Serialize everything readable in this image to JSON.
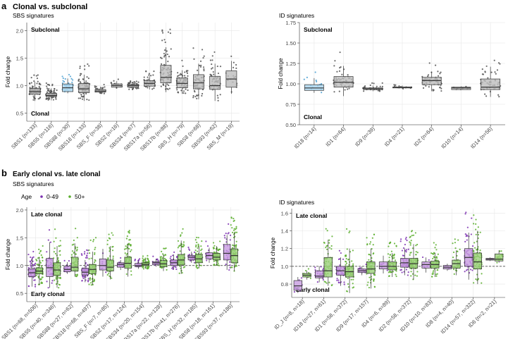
{
  "panel_a": {
    "letter": "a",
    "title": "Clonal vs. subclonal",
    "left_subtitle": "SBS signatures",
    "right_subtitle": "ID signatures"
  },
  "panel_b": {
    "letter": "b",
    "title": "Early clonal vs. late clonal",
    "left_subtitle": "SBS signatures",
    "right_subtitle": "ID signatures",
    "legend_title": "Age",
    "legend_items": [
      {
        "label": "0-49",
        "color": "#7b2fb0"
      },
      {
        "label": "50+",
        "color": "#5aae2d"
      }
    ]
  },
  "colors": {
    "box_grey": "#bdbdbd",
    "box_blue": "#a7d3ec",
    "point_grey": "#555555",
    "point_blue": "#4a9fd1",
    "purple_box": "#c79be0",
    "purple_point": "#7b2fb0",
    "green_box": "#9bcf7a",
    "green_point": "#5aae2d",
    "grid": "#e6e6e6"
  },
  "chart_data": [
    {
      "id": "a_sbs",
      "type": "box",
      "panel": "a",
      "title": "SBS signatures",
      "xlabel": "",
      "ylabel": "Fold change",
      "ylim": [
        0.35,
        2.15
      ],
      "yticks": [
        0.5,
        1.0,
        1.5,
        2.0
      ],
      "yticklabels": [
        "0.5",
        "1.0",
        "1.5",
        "2.0"
      ],
      "annotations": {
        "top": "Subclonal",
        "bottom": "Clonal"
      },
      "categories": [
        "SBS1 (n=133)",
        "SBS5 (n=116)",
        "SBS88 (n=30)",
        "SBS18 (n=133)",
        "SBS_F (n=38)",
        "SBS2 (n=16)",
        "SBS34 (n=67)",
        "SBS17a (n=56)",
        "SBS17b (n=88)",
        "SBS_H (n=79)",
        "SBS8 (n=68)",
        "SBS93 (n=62)",
        "SBS_M (n=19)"
      ],
      "box_color": [
        "grey",
        "grey",
        "blue",
        "grey",
        "grey",
        "grey",
        "grey",
        "grey",
        "grey",
        "grey",
        "grey",
        "grey",
        "grey"
      ],
      "stats": [
        {
          "q1": 0.84,
          "median": 0.89,
          "q3": 0.95,
          "lo": 0.72,
          "hi": 1.07
        },
        {
          "q1": 0.8,
          "median": 0.82,
          "q3": 0.86,
          "lo": 0.73,
          "hi": 0.95
        },
        {
          "q1": 0.89,
          "median": 0.96,
          "q3": 1.03,
          "lo": 0.86,
          "hi": 1.13
        },
        {
          "q1": 0.87,
          "median": 0.94,
          "q3": 1.04,
          "lo": 0.72,
          "hi": 1.2
        },
        {
          "q1": 0.88,
          "median": 0.9,
          "q3": 0.93,
          "lo": 0.85,
          "hi": 0.98
        },
        {
          "q1": 0.97,
          "median": 1.0,
          "q3": 1.03,
          "lo": 0.95,
          "hi": 1.08
        },
        {
          "q1": 0.97,
          "median": 1.0,
          "q3": 1.02,
          "lo": 0.93,
          "hi": 1.07
        },
        {
          "q1": 0.99,
          "median": 1.04,
          "q3": 1.09,
          "lo": 0.93,
          "hi": 1.17
        },
        {
          "q1": 1.05,
          "median": 1.15,
          "q3": 1.37,
          "lo": 0.88,
          "hi": 1.7
        },
        {
          "q1": 0.96,
          "median": 1.04,
          "q3": 1.14,
          "lo": 0.85,
          "hi": 1.28
        },
        {
          "q1": 0.94,
          "median": 1.05,
          "q3": 1.2,
          "lo": 0.75,
          "hi": 1.4
        },
        {
          "q1": 0.93,
          "median": 1.0,
          "q3": 1.17,
          "lo": 0.72,
          "hi": 1.4
        },
        {
          "q1": 0.97,
          "median": 1.12,
          "q3": 1.27,
          "lo": 0.85,
          "hi": 1.45
        }
      ],
      "n": [
        133,
        116,
        30,
        133,
        38,
        16,
        67,
        56,
        88,
        79,
        68,
        62,
        19
      ]
    },
    {
      "id": "a_id",
      "type": "box",
      "panel": "a",
      "title": "ID signatures",
      "xlabel": "",
      "ylabel": "Fold change",
      "ylim": [
        0.5,
        1.75
      ],
      "yticks": [
        0.5,
        0.75,
        1.0,
        1.25,
        1.5,
        1.75
      ],
      "yticklabels": [
        "0.50",
        "0.75",
        "1.00",
        "1.25",
        "1.50",
        "1.75"
      ],
      "annotations": {
        "top": "Subclonal",
        "bottom": "Clonal"
      },
      "categories": [
        "ID18 (n=14)",
        "ID1 (n=64)",
        "ID9 (n=39)",
        "ID4 (n=21)",
        "ID2 (n=64)",
        "ID10 (n=14)",
        "ID14 (n=56)"
      ],
      "box_color": [
        "blue",
        "grey",
        "grey",
        "grey",
        "grey",
        "grey",
        "grey"
      ],
      "stats": [
        {
          "q1": 0.92,
          "median": 0.95,
          "q3": 0.99,
          "lo": 0.89,
          "hi": 1.07
        },
        {
          "q1": 0.96,
          "median": 1.02,
          "q3": 1.09,
          "lo": 0.85,
          "hi": 1.22
        },
        {
          "q1": 0.93,
          "median": 0.94,
          "q3": 0.95,
          "lo": 0.91,
          "hi": 0.98
        },
        {
          "q1": 0.95,
          "median": 0.96,
          "q3": 0.96,
          "lo": 0.94,
          "hi": 0.98
        },
        {
          "q1": 0.99,
          "median": 1.04,
          "q3": 1.08,
          "lo": 0.91,
          "hi": 1.15
        },
        {
          "q1": 0.93,
          "median": 0.95,
          "q3": 0.96,
          "lo": 0.93,
          "hi": 0.97
        },
        {
          "q1": 0.93,
          "median": 0.96,
          "q3": 1.06,
          "lo": 0.84,
          "hi": 1.21
        }
      ],
      "n": [
        14,
        64,
        39,
        21,
        64,
        14,
        56
      ]
    },
    {
      "id": "b_sbs",
      "type": "box",
      "panel": "b",
      "title": "SBS signatures",
      "xlabel": "",
      "ylabel": "Fold change",
      "ylim": [
        0.35,
        2.05
      ],
      "yticks": [
        0.5,
        1.0,
        1.5,
        2.0
      ],
      "yticklabels": [
        "0.5",
        "1.0",
        "1.5",
        "2.0"
      ],
      "reference_line": 1.0,
      "annotations": {
        "top": "Late clonal",
        "bottom": "Early clonal"
      },
      "categories": [
        "SBS1 (n=68, n=506)",
        "SBS5 (n=40, n=346)",
        "SBS88 (n=27, n=62)",
        "SBS18 (n=68, n=497)",
        "SBS_F (n=7, n=85)",
        "SBS2 (n=17, n=124)",
        "SBS34 (n=20, n=154)",
        "SBS17a (n=22, n=128)",
        "SBS17b (n=41, n=276)",
        "SBS_H (n=32, n=185)",
        "SBS8 (n=18, n=161)",
        "SBS93 (n=37, n=186)"
      ],
      "series": [
        {
          "name": "0-49",
          "stats": [
            {
              "q1": 0.8,
              "median": 0.87,
              "q3": 0.94,
              "lo": 0.62,
              "hi": 1.12
            },
            {
              "q1": 0.8,
              "median": 0.96,
              "q3": 1.13,
              "lo": 0.6,
              "hi": 1.42
            },
            {
              "q1": 0.89,
              "median": 0.93,
              "q3": 0.99,
              "lo": 0.85,
              "hi": 1.06
            },
            {
              "q1": 0.83,
              "median": 0.88,
              "q3": 0.95,
              "lo": 0.7,
              "hi": 1.1
            },
            {
              "q1": 0.92,
              "median": 1.0,
              "q3": 1.12,
              "lo": 0.8,
              "hi": 1.3
            },
            {
              "q1": 0.97,
              "median": 1.02,
              "q3": 1.05,
              "lo": 0.92,
              "hi": 1.1
            },
            {
              "q1": 0.98,
              "median": 1.0,
              "q3": 1.04,
              "lo": 0.94,
              "hi": 1.08
            },
            {
              "q1": 1.02,
              "median": 1.05,
              "q3": 1.07,
              "lo": 0.98,
              "hi": 1.12
            },
            {
              "q1": 1.0,
              "median": 1.05,
              "q3": 1.1,
              "lo": 0.93,
              "hi": 1.2
            },
            {
              "q1": 1.1,
              "median": 1.15,
              "q3": 1.18,
              "lo": 1.05,
              "hi": 1.25
            },
            {
              "q1": 1.12,
              "median": 1.18,
              "q3": 1.23,
              "lo": 1.05,
              "hi": 1.32
            },
            {
              "q1": 1.1,
              "median": 1.22,
              "q3": 1.38,
              "lo": 0.92,
              "hi": 1.55
            }
          ],
          "n": [
            68,
            40,
            27,
            68,
            7,
            17,
            20,
            22,
            41,
            32,
            18,
            37
          ]
        },
        {
          "name": "50+",
          "stats": [
            {
              "q1": 0.85,
              "median": 0.9,
              "q3": 0.96,
              "lo": 0.65,
              "hi": 1.15
            },
            {
              "q1": 0.82,
              "median": 0.92,
              "q3": 1.05,
              "lo": 0.6,
              "hi": 1.35
            },
            {
              "q1": 0.9,
              "median": 0.97,
              "q3": 1.15,
              "lo": 0.8,
              "hi": 1.4
            },
            {
              "q1": 0.85,
              "median": 0.93,
              "q3": 1.02,
              "lo": 0.65,
              "hi": 1.25
            },
            {
              "q1": 0.9,
              "median": 0.97,
              "q3": 1.1,
              "lo": 0.75,
              "hi": 1.35
            },
            {
              "q1": 0.95,
              "median": 1.04,
              "q3": 1.15,
              "lo": 0.8,
              "hi": 1.4
            },
            {
              "q1": 1.0,
              "median": 1.02,
              "q3": 1.05,
              "lo": 0.94,
              "hi": 1.12
            },
            {
              "q1": 0.98,
              "median": 1.03,
              "q3": 1.09,
              "lo": 0.9,
              "hi": 1.2
            },
            {
              "q1": 1.01,
              "median": 1.1,
              "q3": 1.2,
              "lo": 0.85,
              "hi": 1.45
            },
            {
              "q1": 1.05,
              "median": 1.12,
              "q3": 1.2,
              "lo": 0.95,
              "hi": 1.35
            },
            {
              "q1": 1.1,
              "median": 1.15,
              "q3": 1.22,
              "lo": 1.0,
              "hi": 1.35
            },
            {
              "q1": 1.05,
              "median": 1.18,
              "q3": 1.3,
              "lo": 0.9,
              "hi": 1.6
            }
          ],
          "n": [
            506,
            346,
            62,
            497,
            85,
            124,
            154,
            128,
            276,
            185,
            161,
            186
          ]
        }
      ]
    },
    {
      "id": "b_id",
      "type": "box",
      "panel": "b",
      "title": "ID signatures",
      "xlabel": "",
      "ylabel": "Fold change",
      "ylim": [
        0.65,
        1.65
      ],
      "yticks": [
        0.8,
        1.0,
        1.2,
        1.4,
        1.6
      ],
      "yticklabels": [
        "0.8",
        "1.0",
        "1.2",
        "1.4",
        "1.6"
      ],
      "reference_line": 1.0,
      "annotations": {
        "top": "Late clonal",
        "bottom": "Early clonal"
      },
      "categories": [
        "ID_J (n=8, n=18)",
        "ID18 (n=27, n=61)",
        "ID1 (n=58, n=372)",
        "ID9 (n=17, n=157)",
        "ID4 (n=6, n=89)",
        "ID2 (n=58, n=372)",
        "ID10 (n=10, n=83)",
        "ID8 (n=4, n=40)",
        "ID14 (n=57, n=322)",
        "ID6 (n=2, n=21)"
      ],
      "series": [
        {
          "name": "0-49",
          "stats": [
            {
              "q1": 0.73,
              "median": 0.78,
              "q3": 0.84,
              "lo": 0.7,
              "hi": 0.88
            },
            {
              "q1": 0.87,
              "median": 0.89,
              "q3": 0.95,
              "lo": 0.82,
              "hi": 1.0
            },
            {
              "q1": 0.9,
              "median": 0.95,
              "q3": 1.0,
              "lo": 0.78,
              "hi": 1.1
            },
            {
              "q1": 0.93,
              "median": 0.95,
              "q3": 0.97,
              "lo": 0.9,
              "hi": 1.0
            },
            {
              "q1": 0.97,
              "median": 1.0,
              "q3": 1.05,
              "lo": 0.92,
              "hi": 1.12
            },
            {
              "q1": 0.99,
              "median": 1.04,
              "q3": 1.09,
              "lo": 0.9,
              "hi": 1.2
            },
            {
              "q1": 0.98,
              "median": 1.02,
              "q3": 1.05,
              "lo": 0.93,
              "hi": 1.1
            },
            {
              "q1": 0.97,
              "median": 0.99,
              "q3": 1.01,
              "lo": 0.95,
              "hi": 1.03
            },
            {
              "q1": 1.0,
              "median": 1.1,
              "q3": 1.2,
              "lo": 0.85,
              "hi": 1.38
            },
            {
              "q1": 1.07,
              "median": 1.08,
              "q3": 1.09,
              "lo": 1.06,
              "hi": 1.1
            }
          ],
          "n": [
            8,
            27,
            58,
            17,
            6,
            58,
            10,
            4,
            57,
            2
          ]
        },
        {
          "name": "50+",
          "stats": [
            {
              "q1": 0.88,
              "median": 0.9,
              "q3": 0.92,
              "lo": 0.85,
              "hi": 0.95
            },
            {
              "q1": 0.88,
              "median": 0.95,
              "q3": 1.1,
              "lo": 0.78,
              "hi": 1.3
            },
            {
              "q1": 0.88,
              "median": 0.94,
              "q3": 1.0,
              "lo": 0.7,
              "hi": 1.2
            },
            {
              "q1": 0.92,
              "median": 0.97,
              "q3": 1.05,
              "lo": 0.75,
              "hi": 1.2
            },
            {
              "q1": 0.96,
              "median": 1.0,
              "q3": 1.05,
              "lo": 0.88,
              "hi": 1.15
            },
            {
              "q1": 0.98,
              "median": 1.03,
              "q3": 1.09,
              "lo": 0.85,
              "hi": 1.25
            },
            {
              "q1": 0.98,
              "median": 1.02,
              "q3": 1.06,
              "lo": 0.88,
              "hi": 1.15
            },
            {
              "q1": 0.98,
              "median": 1.03,
              "q3": 1.07,
              "lo": 0.9,
              "hi": 1.18
            },
            {
              "q1": 0.97,
              "median": 1.05,
              "q3": 1.15,
              "lo": 0.8,
              "hi": 1.4
            },
            {
              "q1": 1.06,
              "median": 1.08,
              "q3": 1.14,
              "lo": 1.04,
              "hi": 1.18
            }
          ],
          "n": [
            18,
            61,
            372,
            157,
            89,
            372,
            83,
            40,
            322,
            21
          ]
        }
      ]
    }
  ]
}
